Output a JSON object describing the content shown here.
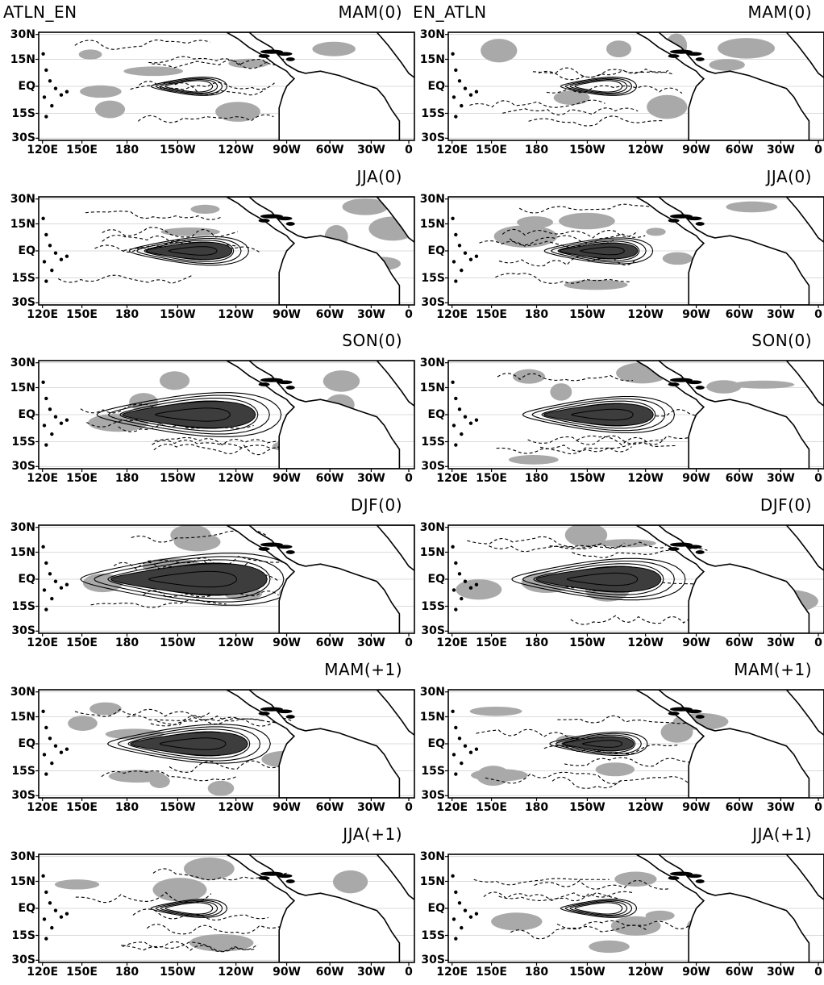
{
  "columns": [
    {
      "title": "ATLN_EN"
    },
    {
      "title": "EN_ATLN"
    }
  ],
  "rows": [
    {
      "season": "MAM(0)",
      "intensity_left": 0.0,
      "intensity_right": 0.0
    },
    {
      "season": "JJA(0)",
      "intensity_left": 0.55,
      "intensity_right": 0.5
    },
    {
      "season": "SON(0)",
      "intensity_left": 0.85,
      "intensity_right": 0.7
    },
    {
      "season": "DJF(0)",
      "intensity_left": 1.0,
      "intensity_right": 0.8
    },
    {
      "season": "MAM(+1)",
      "intensity_left": 0.75,
      "intensity_right": 0.45
    },
    {
      "season": "JJA(+1)",
      "intensity_left": 0.0,
      "intensity_right": 0.05
    }
  ],
  "lat_labels": [
    "30N",
    "15N",
    "EQ",
    "15S",
    "30S"
  ],
  "lon_labels": [
    "120E",
    "150E",
    "180",
    "150W",
    "120W",
    "90W",
    "60W",
    "30W",
    "0"
  ],
  "colors": {
    "strong_positive_shading": "#3d3d3d",
    "significance_shading": "#a9a9a9",
    "contour": "#000000",
    "grid": "#cfcfcf"
  }
}
